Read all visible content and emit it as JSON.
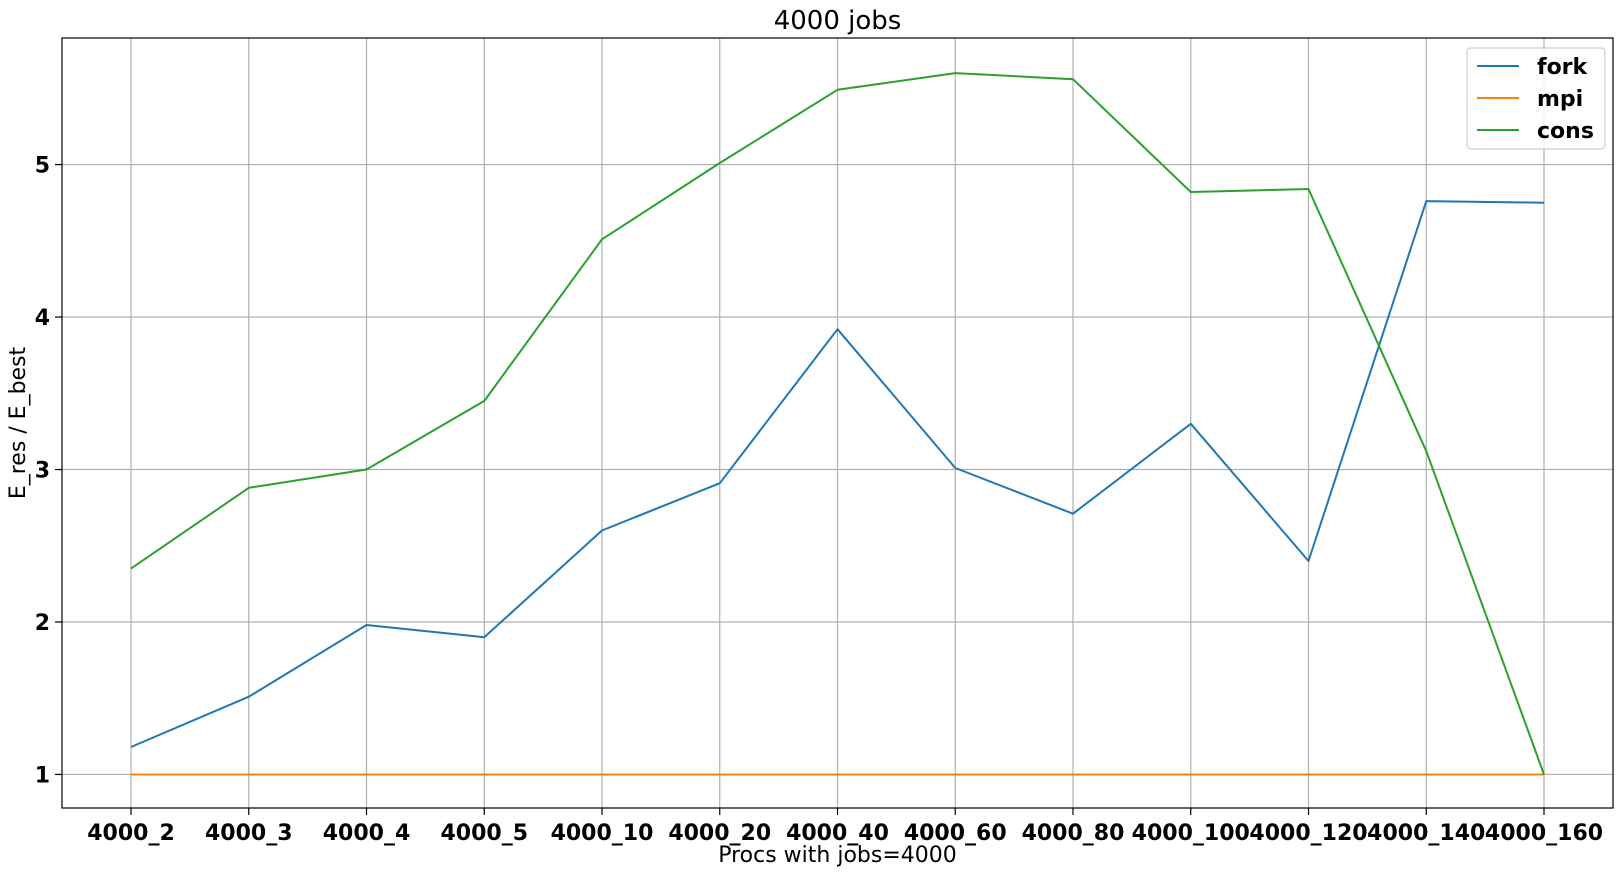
{
  "chart_data": {
    "type": "line",
    "title": "4000 jobs",
    "xlabel": "Procs with jobs=4000",
    "ylabel": "E_res / E_best",
    "categories": [
      "4000_2",
      "4000_3",
      "4000_4",
      "4000_5",
      "4000_10",
      "4000_20",
      "4000_40",
      "4000_60",
      "4000_80",
      "4000_100",
      "4000_120",
      "4000_140",
      "4000_160"
    ],
    "yticks": [
      1,
      2,
      3,
      4,
      5
    ],
    "ylim": [
      0.78,
      5.83
    ],
    "grid": true,
    "legend_position": "upper right",
    "series": [
      {
        "name": "fork",
        "color": "#1f77b4",
        "values": [
          1.18,
          1.51,
          1.98,
          1.9,
          2.6,
          2.91,
          3.92,
          3.01,
          2.71,
          3.3,
          2.4,
          4.76,
          4.75
        ]
      },
      {
        "name": "mpi",
        "color": "#ff7f0e",
        "values": [
          1.0,
          1.0,
          1.0,
          1.0,
          1.0,
          1.0,
          1.0,
          1.0,
          1.0,
          1.0,
          1.0,
          1.0,
          1.0
        ]
      },
      {
        "name": "cons",
        "color": "#2ca02c",
        "values": [
          2.35,
          2.88,
          3.0,
          3.45,
          4.51,
          5.01,
          5.49,
          5.6,
          5.56,
          4.82,
          4.84,
          3.12,
          1.0
        ]
      }
    ]
  }
}
